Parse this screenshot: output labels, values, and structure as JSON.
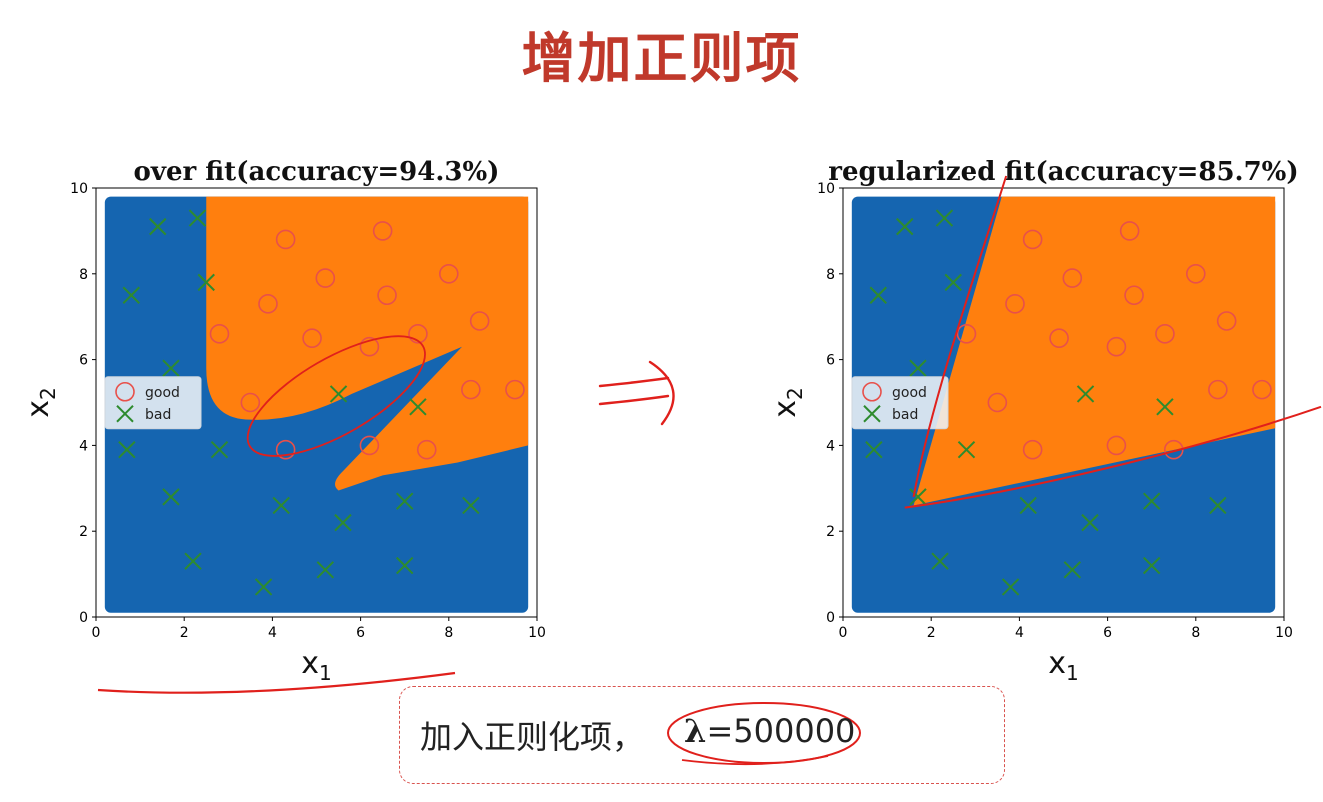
{
  "slide": {
    "title": "增加正则项",
    "note_text": "加入正则化项，",
    "note_lambda_symbol": "λ",
    "note_lambda_value": "=500000"
  },
  "colors": {
    "title": "#c0392b",
    "good_region": "#ff7f0e",
    "bad_region": "#1565b0",
    "good_marker": "#e8504a",
    "bad_marker": "#2e8b2e",
    "annotation": "#e0201c"
  },
  "icons": {
    "arrow": "double-arrow-icon",
    "good": "circle-marker-icon",
    "bad": "x-marker-icon"
  },
  "chart_data": [
    {
      "type": "scatter",
      "title": "over fit(accuracy=94.3%)",
      "xlabel": "x1",
      "ylabel": "x2",
      "xlim": [
        0,
        10
      ],
      "ylim": [
        0,
        10
      ],
      "xticks": [
        0,
        2,
        4,
        6,
        8,
        10
      ],
      "yticks": [
        0,
        2,
        4,
        6,
        8,
        10
      ],
      "grid": false,
      "legend": "center-left",
      "decision_region": "overfit",
      "series": [
        {
          "name": "good",
          "marker": "circle",
          "x": [
            4.3,
            6.5,
            5.2,
            3.9,
            6.6,
            8.0,
            2.8,
            4.9,
            6.2,
            7.3,
            8.7,
            3.5,
            8.5,
            9.5,
            4.3,
            6.2,
            7.5
          ],
          "y": [
            8.8,
            9.0,
            7.9,
            7.3,
            7.5,
            8.0,
            6.6,
            6.5,
            6.3,
            6.6,
            6.9,
            5.0,
            5.3,
            5.3,
            3.9,
            4.0,
            3.9
          ]
        },
        {
          "name": "bad",
          "marker": "x",
          "x": [
            1.4,
            2.3,
            0.8,
            2.5,
            1.7,
            5.5,
            7.3,
            0.7,
            2.8,
            1.7,
            4.2,
            5.6,
            7.0,
            8.5,
            2.2,
            3.8,
            5.2,
            7.0
          ],
          "y": [
            9.1,
            9.3,
            7.5,
            7.8,
            5.8,
            5.2,
            4.9,
            3.9,
            3.9,
            2.8,
            2.6,
            2.2,
            2.7,
            2.6,
            1.3,
            0.7,
            1.1,
            1.2
          ]
        }
      ]
    },
    {
      "type": "scatter",
      "title": "regularized fit(accuracy=85.7%)",
      "xlabel": "x1",
      "ylabel": "x2",
      "xlim": [
        0,
        10
      ],
      "ylim": [
        0,
        10
      ],
      "xticks": [
        0,
        2,
        4,
        6,
        8,
        10
      ],
      "yticks": [
        0,
        2,
        4,
        6,
        8,
        10
      ],
      "grid": false,
      "legend": "center-left",
      "decision_region": "wedge",
      "series": [
        {
          "name": "good",
          "marker": "circle",
          "x": [
            4.3,
            6.5,
            5.2,
            3.9,
            6.6,
            8.0,
            2.8,
            4.9,
            6.2,
            7.3,
            8.7,
            3.5,
            8.5,
            9.5,
            4.3,
            6.2,
            7.5
          ],
          "y": [
            8.8,
            9.0,
            7.9,
            7.3,
            7.5,
            8.0,
            6.6,
            6.5,
            6.3,
            6.6,
            6.9,
            5.0,
            5.3,
            5.3,
            3.9,
            4.0,
            3.9
          ]
        },
        {
          "name": "bad",
          "marker": "x",
          "x": [
            1.4,
            2.3,
            0.8,
            2.5,
            1.7,
            5.5,
            7.3,
            0.7,
            2.8,
            1.7,
            4.2,
            5.6,
            7.0,
            8.5,
            2.2,
            3.8,
            5.2,
            7.0
          ],
          "y": [
            9.1,
            9.3,
            7.5,
            7.8,
            5.8,
            5.2,
            4.9,
            3.9,
            3.9,
            2.8,
            2.6,
            2.2,
            2.7,
            2.6,
            1.3,
            0.7,
            1.1,
            1.2
          ]
        }
      ]
    }
  ]
}
